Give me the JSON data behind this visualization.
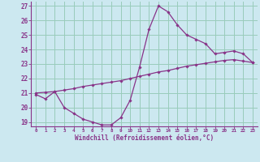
{
  "xlabel": "Windchill (Refroidissement éolien,°C)",
  "bg_color": "#cce8f0",
  "line_color": "#883388",
  "grid_color": "#99ccbb",
  "spine_color": "#883388",
  "xlim": [
    -0.5,
    23.5
  ],
  "ylim": [
    18.7,
    27.3
  ],
  "xticks": [
    0,
    1,
    2,
    3,
    4,
    5,
    6,
    7,
    8,
    9,
    10,
    11,
    12,
    13,
    14,
    15,
    16,
    17,
    18,
    19,
    20,
    21,
    22,
    23
  ],
  "yticks": [
    19,
    20,
    21,
    22,
    23,
    24,
    25,
    26,
    27
  ],
  "curve1_x": [
    0,
    1,
    2,
    3,
    4,
    5,
    6,
    7,
    8,
    9,
    10,
    11,
    12,
    13,
    14,
    15,
    16,
    17,
    18,
    19,
    20,
    21,
    22,
    23
  ],
  "curve1_y": [
    20.9,
    20.6,
    21.1,
    20.0,
    19.6,
    19.2,
    19.0,
    18.8,
    18.8,
    19.3,
    20.5,
    22.8,
    25.4,
    27.0,
    26.6,
    25.7,
    25.0,
    24.7,
    24.4,
    23.7,
    23.8,
    23.9,
    23.7,
    23.1
  ],
  "curve2_x": [
    0,
    1,
    2,
    3,
    4,
    5,
    6,
    7,
    8,
    9,
    10,
    11,
    12,
    13,
    14,
    15,
    16,
    17,
    18,
    19,
    20,
    21,
    22,
    23
  ],
  "curve2_y": [
    21.0,
    21.05,
    21.1,
    21.2,
    21.3,
    21.45,
    21.55,
    21.65,
    21.75,
    21.85,
    22.0,
    22.15,
    22.3,
    22.45,
    22.55,
    22.7,
    22.85,
    22.95,
    23.05,
    23.15,
    23.25,
    23.3,
    23.2,
    23.1
  ]
}
